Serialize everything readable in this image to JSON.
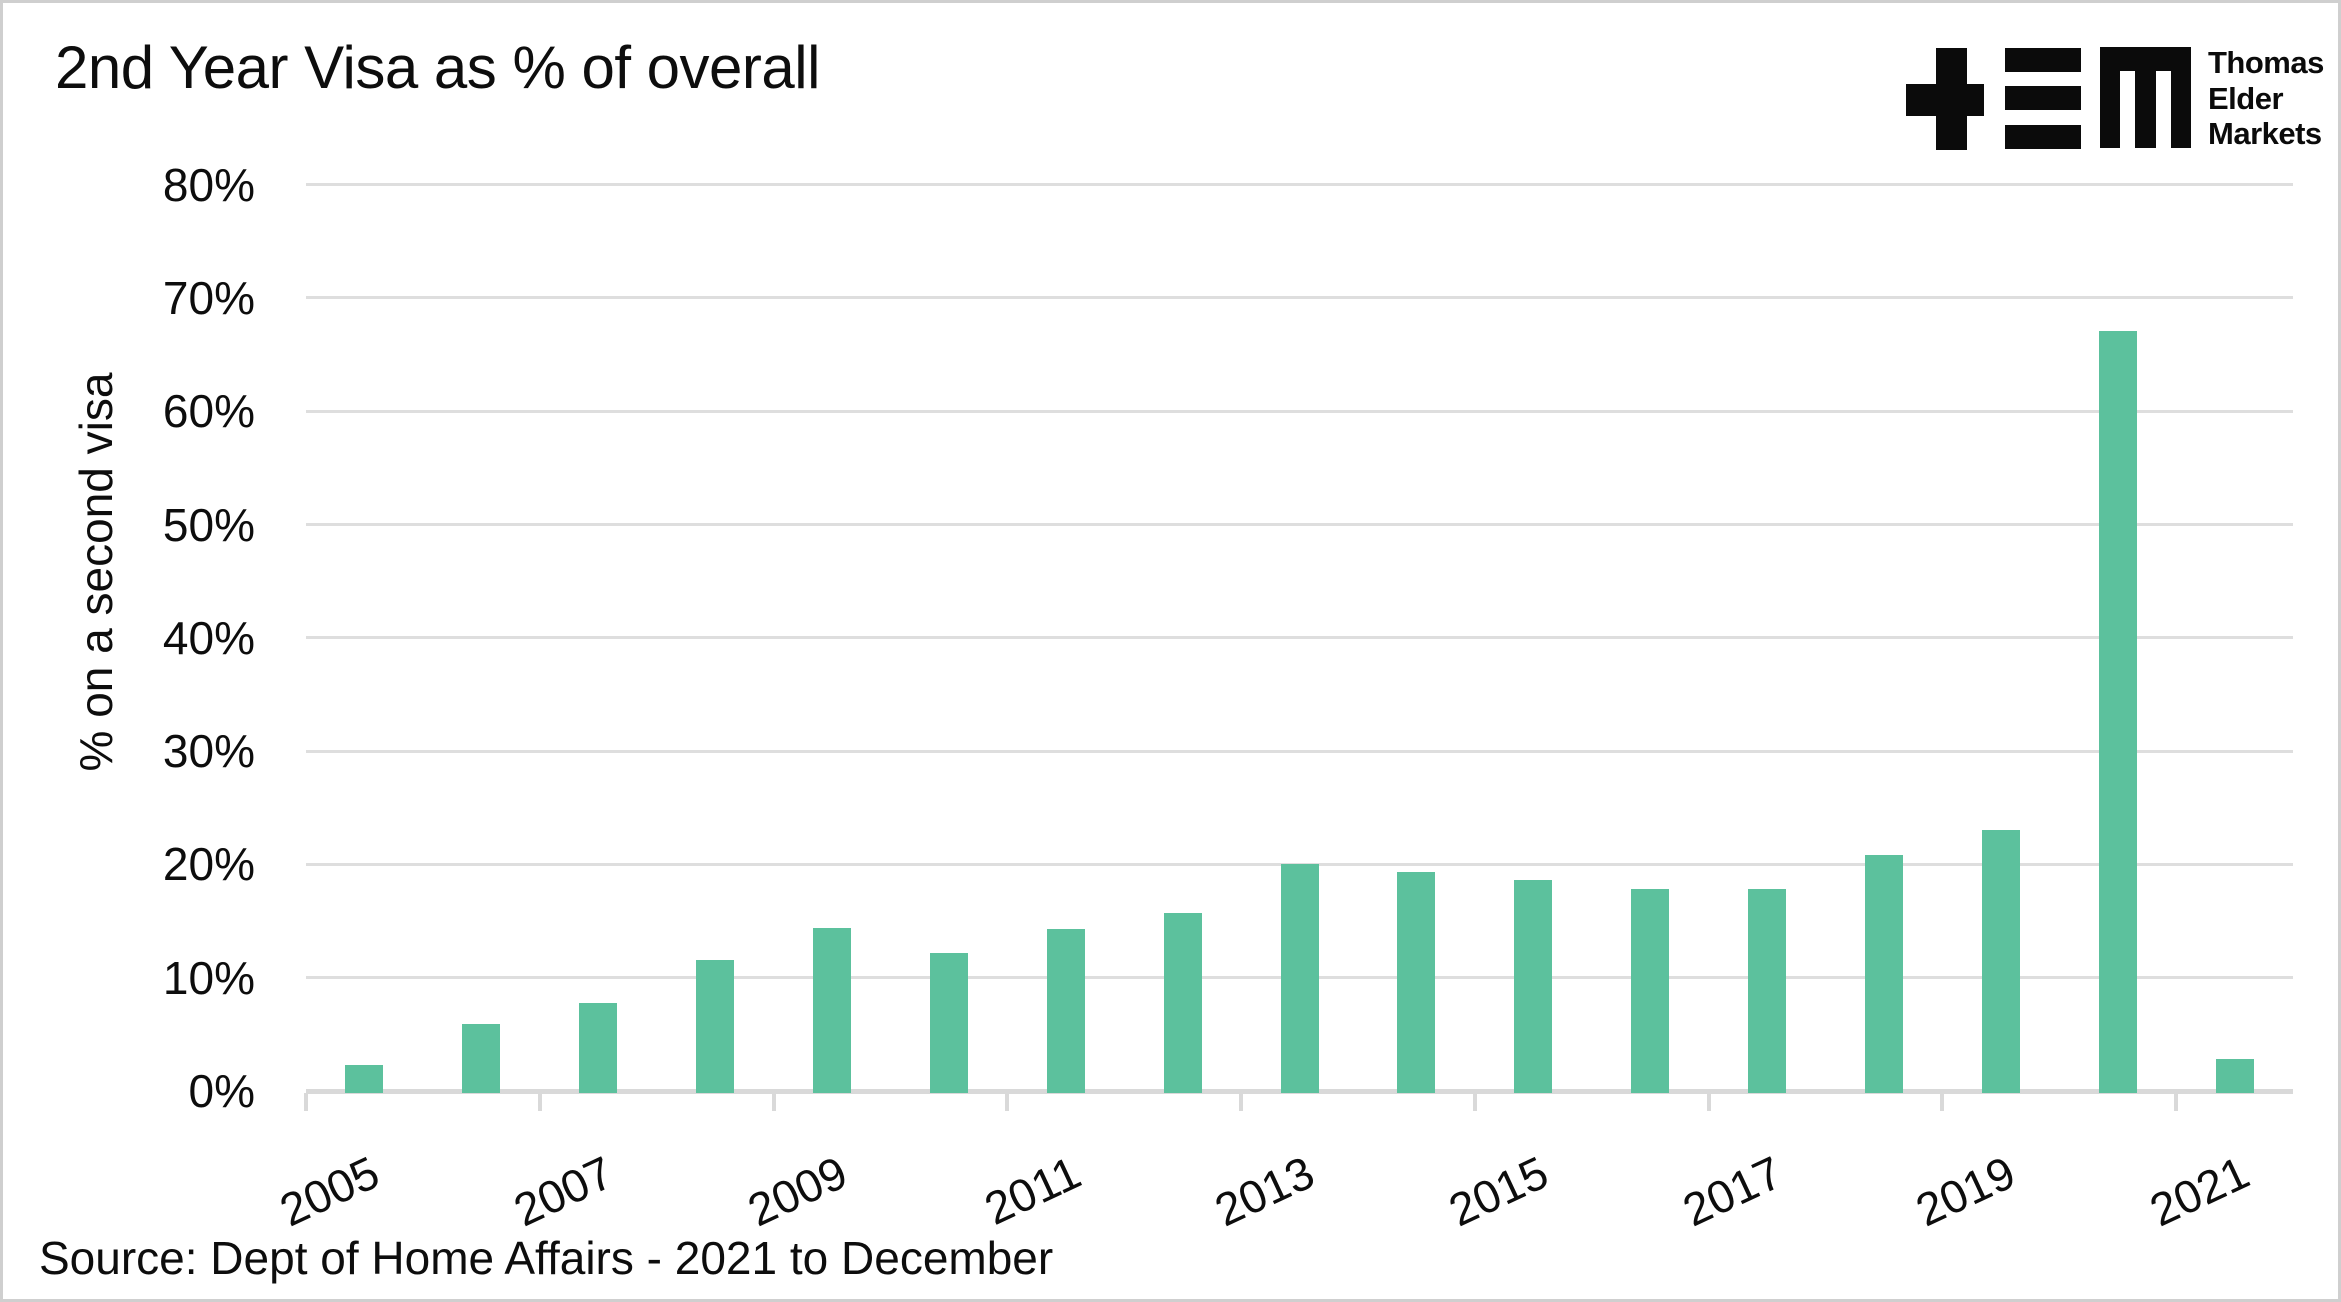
{
  "header": {
    "title": "2nd Year Visa as % of overall"
  },
  "logo": {
    "name": "Thomas Elder Markets logo",
    "line1": "Thomas",
    "line2": "Elder",
    "line3": "Markets"
  },
  "source_note": "Source: Dept of Home Affairs - 2021 to December",
  "chart_data": {
    "type": "bar",
    "title": "2nd Year Visa as % of overall",
    "xlabel": "",
    "ylabel": "% on a second visa",
    "categories": [
      "2005",
      "2006",
      "2007",
      "2008",
      "2009",
      "2010",
      "2011",
      "2012",
      "2013",
      "2014",
      "2015",
      "2016",
      "2017",
      "2018",
      "2019",
      "2020",
      "2021"
    ],
    "values": [
      2.3,
      5.9,
      7.8,
      11.6,
      14.4,
      12.2,
      14.3,
      15.7,
      20.0,
      19.3,
      18.6,
      17.8,
      17.8,
      20.8,
      23.0,
      67.1,
      2.8
    ],
    "x_tick_labels": [
      "2005",
      "2007",
      "2009",
      "2011",
      "2013",
      "2015",
      "2017",
      "2019",
      "2021"
    ],
    "y_tick_labels": [
      "0%",
      "10%",
      "20%",
      "30%",
      "40%",
      "50%",
      "60%",
      "70%",
      "80%"
    ],
    "y_tick_values": [
      0,
      10,
      20,
      30,
      40,
      50,
      60,
      70,
      80
    ],
    "ylim": [
      0,
      80
    ],
    "grid": true,
    "legend_position": "none",
    "bar_color": "#5cc19d",
    "gridline_color": "#dedede",
    "axis_color": "#d9d9d9",
    "text_color": "#0d0d0d"
  }
}
